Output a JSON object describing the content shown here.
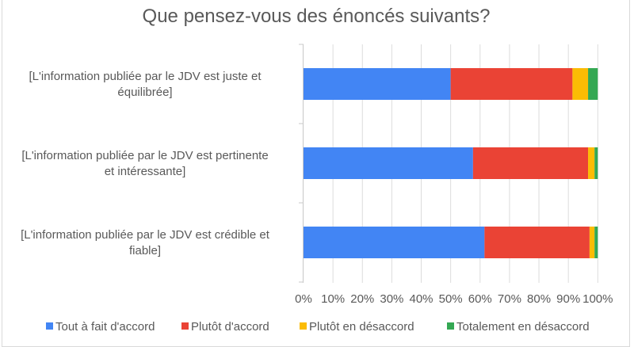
{
  "chart_data": {
    "type": "bar",
    "orientation": "horizontal",
    "stacked": "percent",
    "title": "Que pensez-vous des énoncés suivants?",
    "xlabel": "",
    "ylabel": "",
    "xlim": [
      0,
      100
    ],
    "grid": true,
    "legend_position": "bottom",
    "categories": [
      [
        "[L'information publiée par le JDV est juste et",
        "équilibrée]"
      ],
      [
        "[L'information publiée par le JDV est pertinente",
        "et intéressante]"
      ],
      [
        "[L'information publiée par le JDV est crédible et",
        "fiable]"
      ]
    ],
    "x_ticks": [
      "0%",
      "10%",
      "20%",
      "30%",
      "40%",
      "50%",
      "60%",
      "70%",
      "80%",
      "90%",
      "100%"
    ],
    "series": [
      {
        "name": "Tout à fait d'accord",
        "color": "#4285f4",
        "values": [
          50.0,
          57.6,
          61.5
        ]
      },
      {
        "name": "Plutôt d'accord",
        "color": "#ea4335",
        "values": [
          41.4,
          39.1,
          35.7
        ]
      },
      {
        "name": "Plutôt en désaccord",
        "color": "#fbbc04",
        "values": [
          5.3,
          2.2,
          1.7
        ]
      },
      {
        "name": "Totalement en désaccord",
        "color": "#34a853",
        "values": [
          3.3,
          1.1,
          1.1
        ]
      }
    ]
  }
}
